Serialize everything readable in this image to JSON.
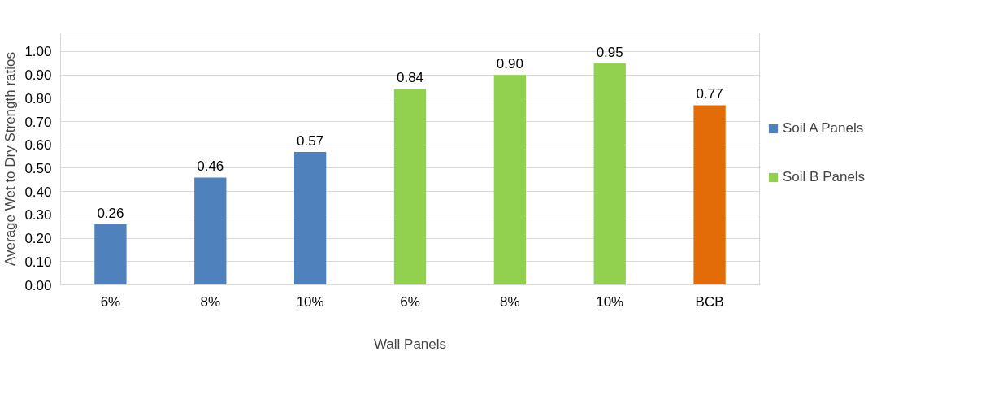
{
  "chart_data": {
    "type": "bar",
    "xlabel": "Wall Panels",
    "ylabel": "Average Wet to Dry Strength ratios",
    "categories": [
      "6%",
      "8%",
      "10%",
      "6%",
      "8%",
      "10%",
      "BCB"
    ],
    "series": [
      {
        "name": "Soil A Panels",
        "color": "#4f81bd",
        "values": [
          0.26,
          0.46,
          0.57,
          null,
          null,
          null,
          null
        ],
        "value_labels": [
          "0.26",
          "0.46",
          "0.57",
          null,
          null,
          null,
          null
        ]
      },
      {
        "name": "Soil B Panels",
        "color": "#92d050",
        "values": [
          null,
          null,
          null,
          0.84,
          0.9,
          0.95,
          null
        ],
        "value_labels": [
          null,
          null,
          null,
          "0.84",
          "0.90",
          "0.95",
          null
        ]
      },
      {
        "color": "#e36c09",
        "values": [
          null,
          null,
          null,
          null,
          null,
          null,
          0.77
        ],
        "value_labels": [
          null,
          null,
          null,
          null,
          null,
          null,
          "0.77"
        ]
      }
    ],
    "ylim": [
      0,
      1.08
    ],
    "yticks": [
      {
        "value": 0,
        "label": "0.00"
      },
      {
        "value": 0.1,
        "label": "0.10"
      },
      {
        "value": 0.2,
        "label": "0.20"
      },
      {
        "value": 0.3,
        "label": "0.30"
      },
      {
        "value": 0.4,
        "label": "0.40"
      },
      {
        "value": 0.5,
        "label": "0.50"
      },
      {
        "value": 0.6,
        "label": "0.60"
      },
      {
        "value": 0.7,
        "label": "0.70"
      },
      {
        "value": 0.8,
        "label": "0.80"
      },
      {
        "value": 0.9,
        "label": "0.90"
      },
      {
        "value": 1.0,
        "label": "1.00"
      }
    ],
    "grid": "y",
    "legend": "right"
  }
}
